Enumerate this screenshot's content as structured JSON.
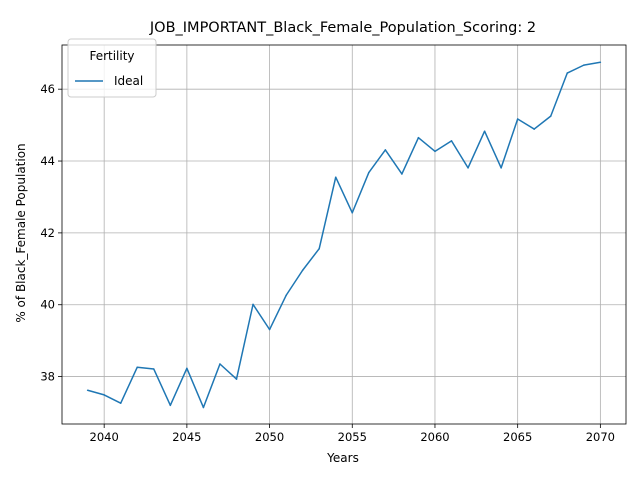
{
  "chart_data": {
    "type": "line",
    "title": "JOB_IMPORTANT_Black_Female_Population_Scoring: 2",
    "xlabel": "Years",
    "ylabel": "% of Black_Female Population",
    "xlim": [
      2037.45,
      2071.55
    ],
    "ylim": [
      36.68,
      47.23
    ],
    "xticks": [
      2040,
      2045,
      2050,
      2055,
      2060,
      2065,
      2070
    ],
    "yticks": [
      38,
      40,
      42,
      44,
      46
    ],
    "grid": true,
    "legend": {
      "title": "Fertility",
      "position": "top-left"
    },
    "x": [
      2039,
      2040,
      2041,
      2042,
      2043,
      2044,
      2045,
      2046,
      2047,
      2048,
      2049,
      2050,
      2051,
      2052,
      2053,
      2054,
      2055,
      2056,
      2057,
      2058,
      2059,
      2060,
      2061,
      2062,
      2063,
      2064,
      2065,
      2066,
      2067,
      2068,
      2069,
      2070
    ],
    "series": [
      {
        "name": "Ideal",
        "color": "#1f77b4",
        "values": [
          37.62,
          37.49,
          37.26,
          38.26,
          38.21,
          37.2,
          38.23,
          37.14,
          38.35,
          37.93,
          40.01,
          39.31,
          40.26,
          40.96,
          41.56,
          43.55,
          42.56,
          43.68,
          44.31,
          43.64,
          44.65,
          44.27,
          44.56,
          43.81,
          44.83,
          43.81,
          45.17,
          44.89,
          45.25,
          46.45,
          46.67,
          46.75
        ]
      }
    ]
  }
}
